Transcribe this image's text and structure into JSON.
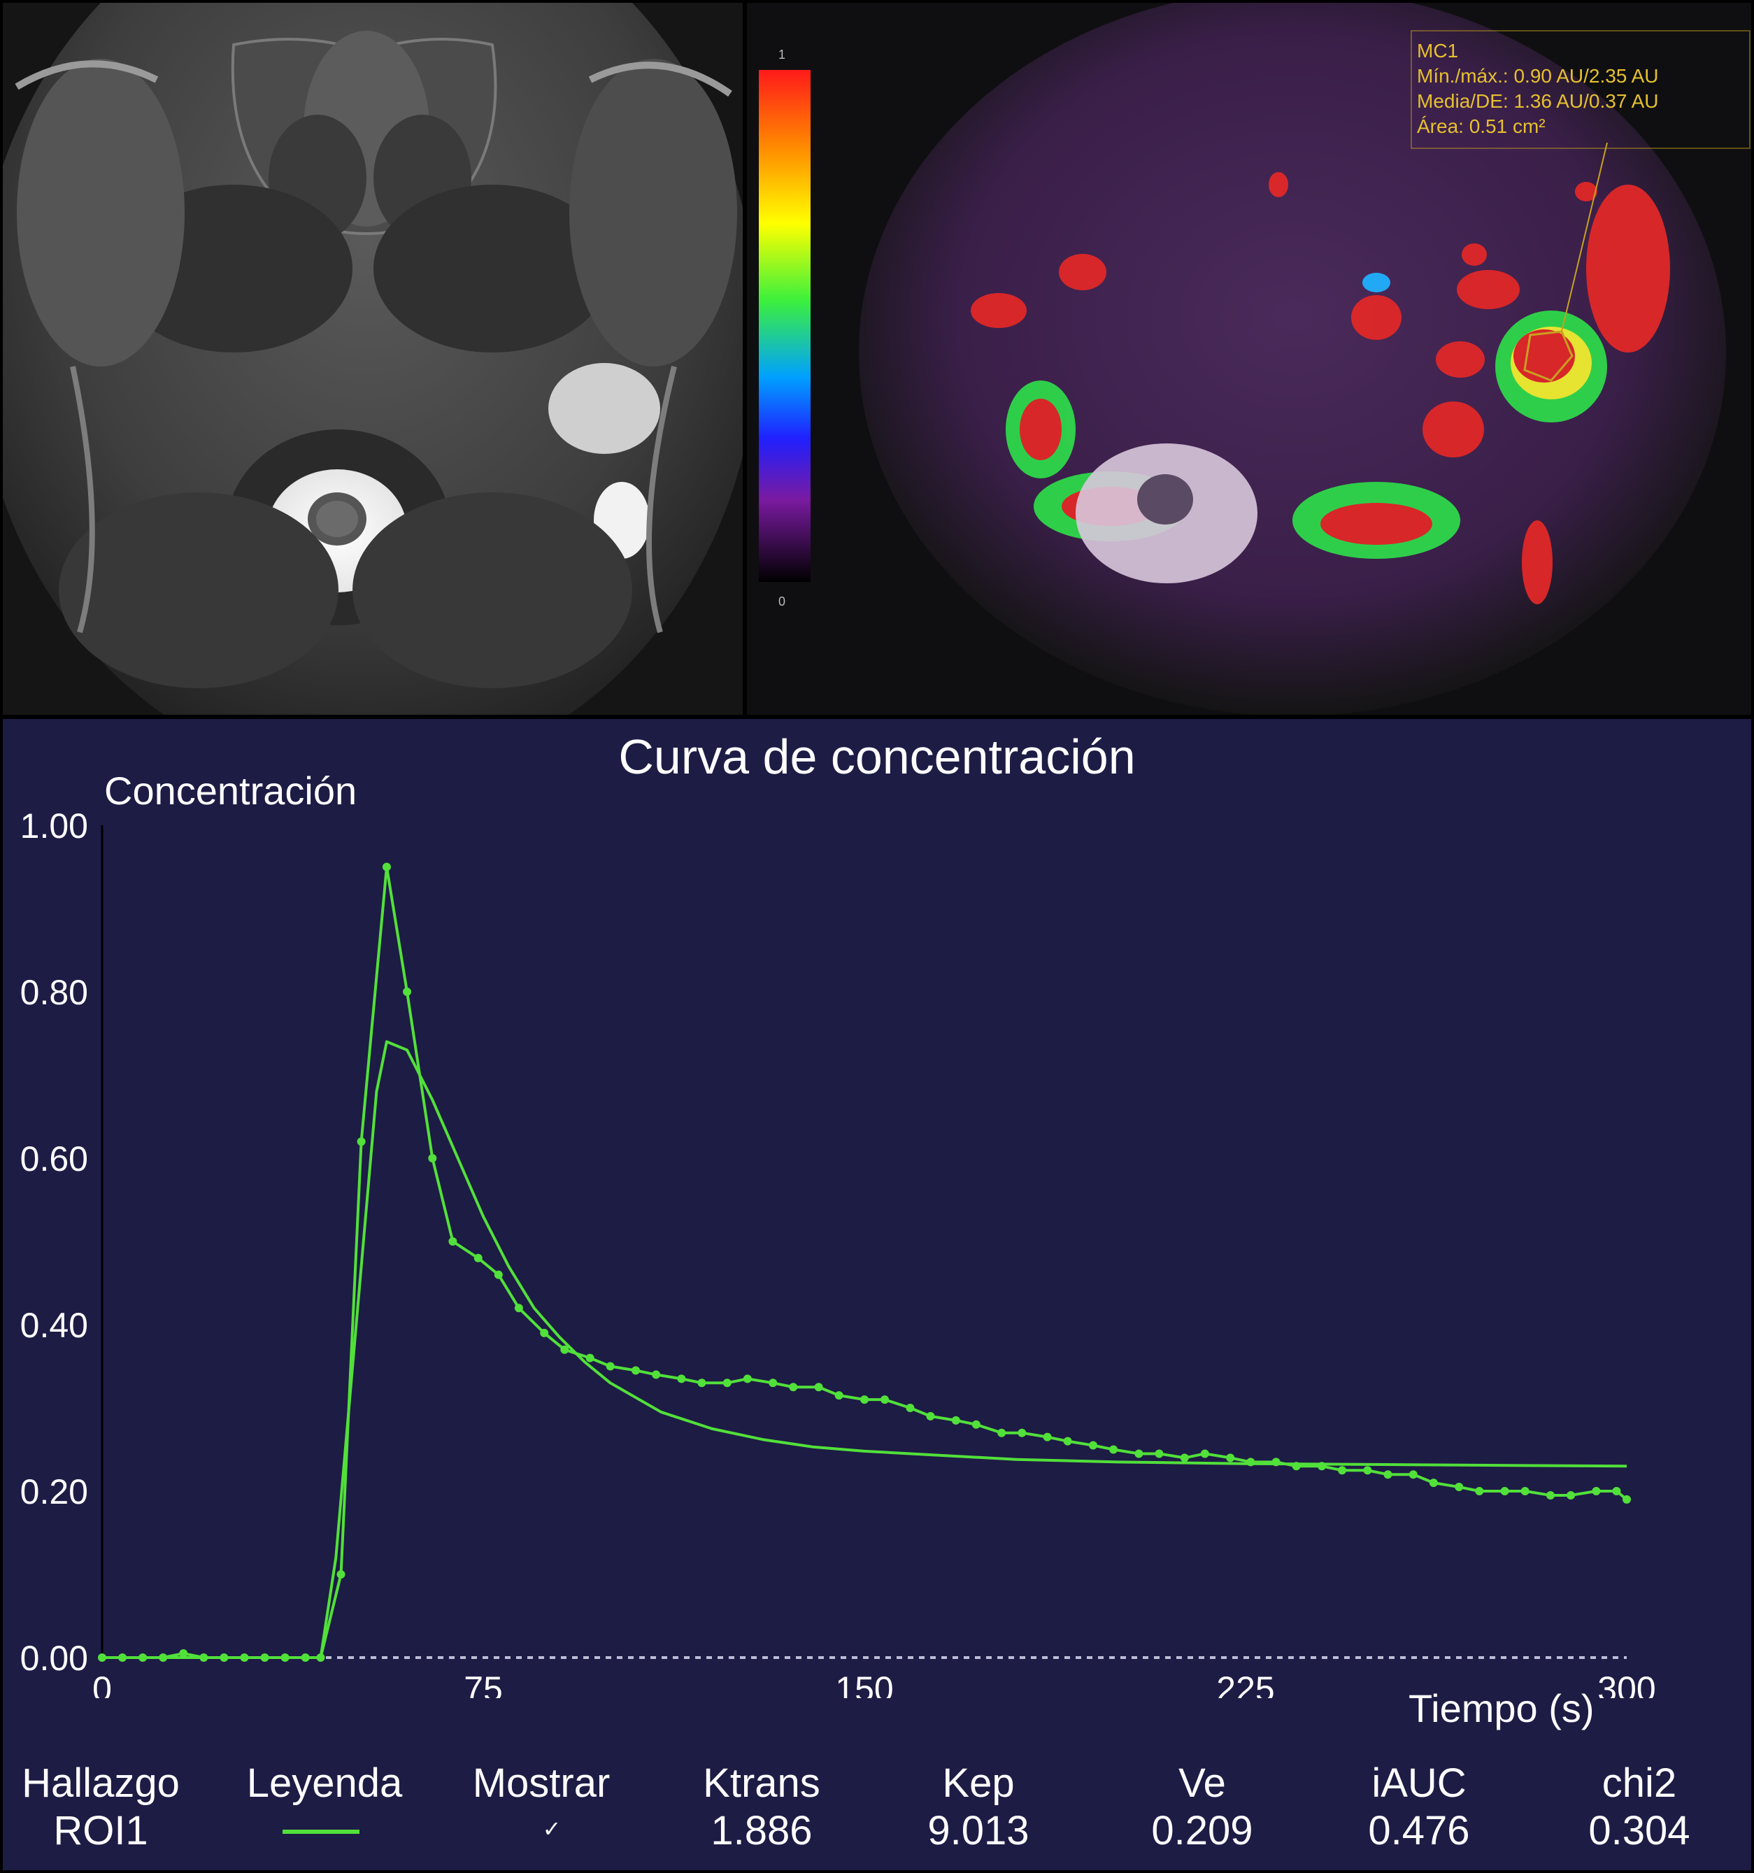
{
  "overlay": {
    "roi_name": "MC1",
    "min_max": "Mín./máx.: 0.90 AU/2.35 AU",
    "mean_sd": "Media/DE: 1.36 AU/0.37 AU",
    "area": "Área: 0.51 cm²",
    "colorbar_top": "1",
    "colorbar_bottom": "0"
  },
  "colors": {
    "curve": "#52e03a",
    "background": "#1d1c45",
    "text": "#ffffff",
    "roi_box": "#c8a020"
  },
  "chart_data": {
    "type": "line",
    "title": "Curva de concentración",
    "ylabel": "Concentración",
    "xlabel": "Tiempo (s)",
    "xlim": [
      0,
      300
    ],
    "ylim": [
      0,
      1.0
    ],
    "xticks": [
      "0",
      "75",
      "150",
      "225",
      "300"
    ],
    "yticks": [
      "0.00",
      "0.20",
      "0.40",
      "0.60",
      "0.80",
      "1.00"
    ],
    "grid": false,
    "series": [
      {
        "type": "measured",
        "markers": true,
        "x": [
          0,
          4,
          8,
          12,
          16,
          20,
          24,
          28,
          32,
          36,
          40,
          43,
          47,
          51,
          56,
          60,
          65,
          69,
          74,
          78,
          82,
          87,
          91,
          96,
          100,
          105,
          109,
          114,
          118,
          123,
          127,
          132,
          136,
          141,
          145,
          150,
          154,
          159,
          163,
          168,
          172,
          177,
          181,
          186,
          190,
          195,
          199,
          204,
          208,
          213,
          217,
          222,
          226,
          231,
          235,
          240,
          244,
          249,
          253,
          258,
          262,
          267,
          271,
          276,
          280,
          285,
          289,
          294,
          298,
          300
        ],
        "y": [
          0.0,
          0.0,
          0.0,
          0.0,
          0.005,
          0.0,
          0.0,
          0.0,
          0.0,
          0.0,
          0.0,
          0.0,
          0.1,
          0.62,
          0.95,
          0.8,
          0.6,
          0.5,
          0.48,
          0.46,
          0.42,
          0.39,
          0.37,
          0.36,
          0.35,
          0.345,
          0.34,
          0.335,
          0.33,
          0.33,
          0.335,
          0.33,
          0.325,
          0.325,
          0.315,
          0.31,
          0.31,
          0.3,
          0.29,
          0.285,
          0.28,
          0.27,
          0.27,
          0.265,
          0.26,
          0.255,
          0.25,
          0.245,
          0.245,
          0.24,
          0.245,
          0.24,
          0.235,
          0.235,
          0.23,
          0.23,
          0.225,
          0.225,
          0.22,
          0.22,
          0.21,
          0.205,
          0.2,
          0.2,
          0.2,
          0.195,
          0.195,
          0.2,
          0.2,
          0.19
        ]
      },
      {
        "type": "fit",
        "markers": false,
        "x": [
          0,
          10,
          20,
          30,
          40,
          43,
          46,
          50,
          54,
          56,
          60,
          65,
          70,
          75,
          80,
          85,
          90,
          95,
          100,
          110,
          120,
          130,
          140,
          150,
          165,
          180,
          200,
          225,
          250,
          275,
          300
        ],
        "y": [
          0.0,
          0.0,
          0.0,
          0.0,
          0.0,
          0.0,
          0.12,
          0.4,
          0.68,
          0.74,
          0.73,
          0.67,
          0.6,
          0.53,
          0.47,
          0.42,
          0.385,
          0.355,
          0.33,
          0.295,
          0.275,
          0.262,
          0.253,
          0.248,
          0.243,
          0.238,
          0.235,
          0.233,
          0.232,
          0.231,
          0.23
        ]
      }
    ]
  },
  "params_table": {
    "headers": [
      "Hallazgo",
      "Leyenda",
      "Mostrar",
      "Ktrans",
      "Kep",
      "Ve",
      "iAUC",
      "chi2"
    ],
    "row": {
      "hallazgo": "ROI1",
      "mostrar": "✓",
      "ktrans": "1.886",
      "kep": "9.013",
      "ve": "0.209",
      "iauc": "0.476",
      "chi2": "0.304"
    }
  }
}
